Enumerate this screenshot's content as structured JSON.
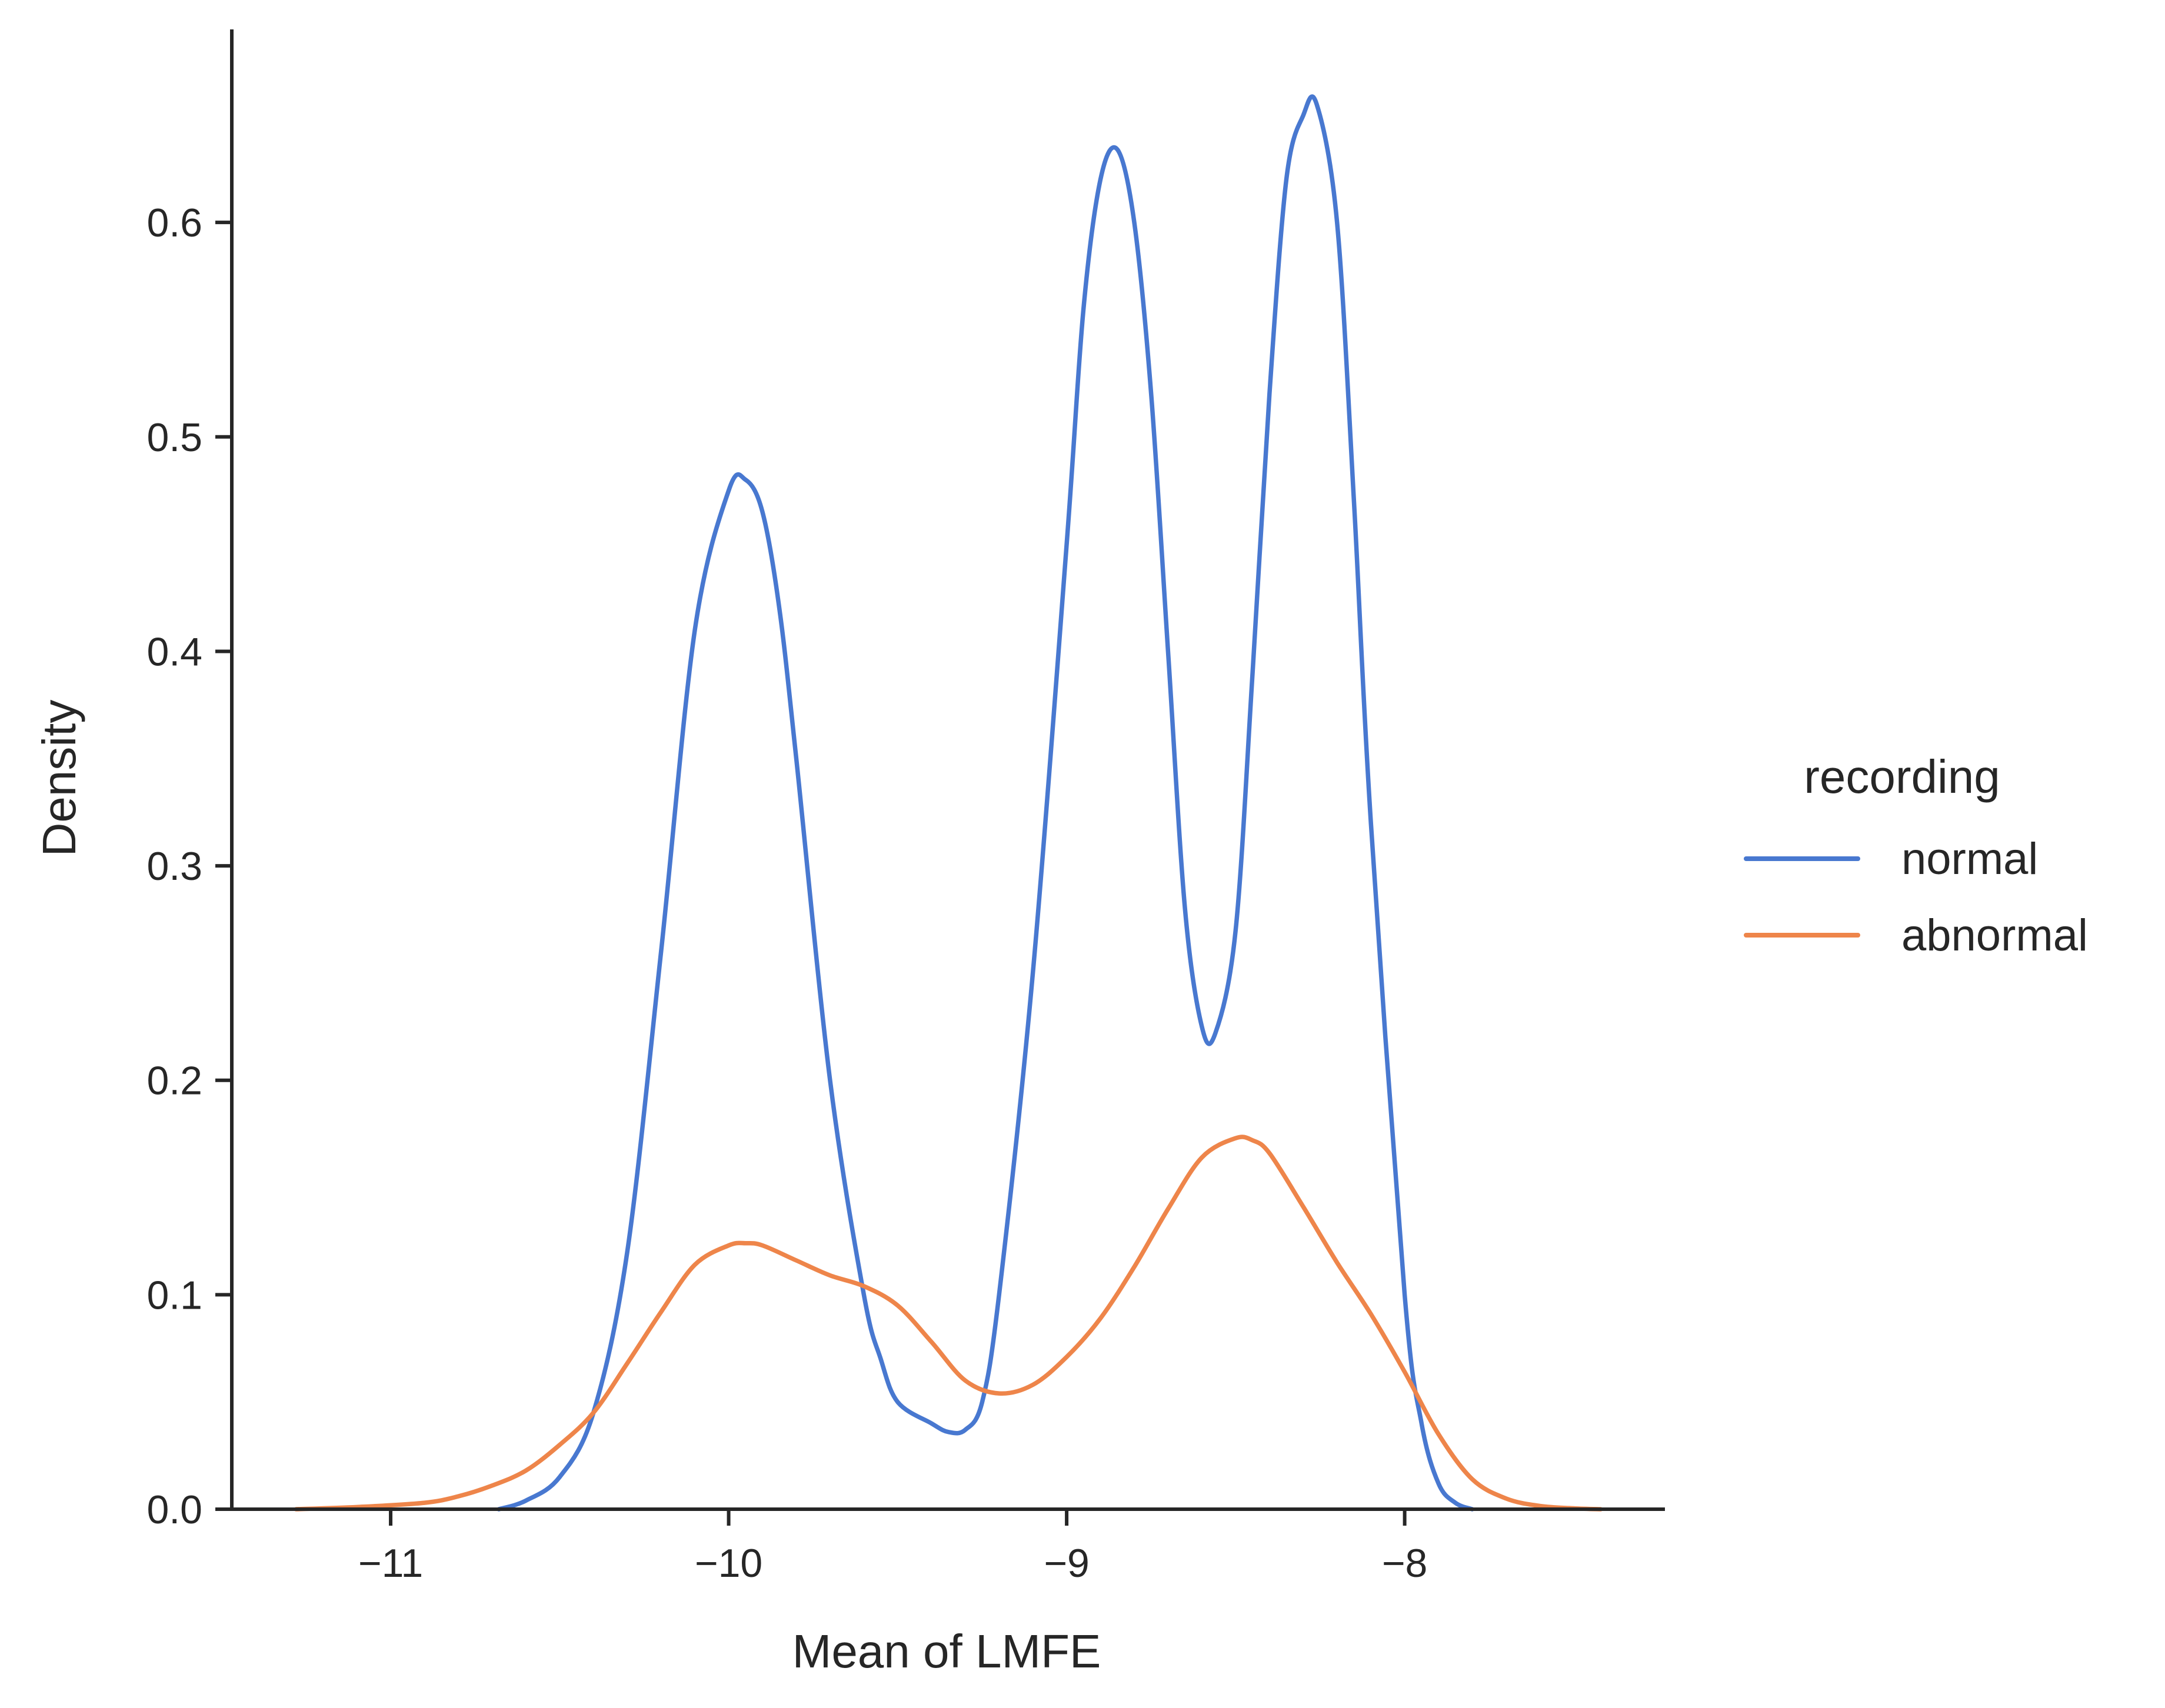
{
  "chart_data": {
    "type": "line",
    "title": "",
    "xlabel": "Mean of LMFE",
    "ylabel": "Density",
    "xlim": [
      -11.47,
      -7.23
    ],
    "ylim": [
      0,
      0.69
    ],
    "xticks": [
      -11,
      -10,
      -9,
      -8
    ],
    "xtick_labels": [
      "−11",
      "−10",
      "−9",
      "−8"
    ],
    "yticks": [
      0.0,
      0.1,
      0.2,
      0.3,
      0.4,
      0.5,
      0.6
    ],
    "ytick_labels": [
      "0.0",
      "0.1",
      "0.2",
      "0.3",
      "0.4",
      "0.5",
      "0.6"
    ],
    "grid": false,
    "legend": {
      "title": "recording",
      "placement": "outside-right"
    },
    "series": [
      {
        "name": "normal",
        "color": "#4878d0",
        "x": [
          -10.68,
          -10.6,
          -10.5,
          -10.4,
          -10.3,
          -10.2,
          -10.1,
          -10.0,
          -9.95,
          -9.9,
          -9.85,
          -9.8,
          -9.7,
          -9.6,
          -9.55,
          -9.5,
          -9.4,
          -9.35,
          -9.3,
          -9.25,
          -9.2,
          -9.1,
          -9.0,
          -8.95,
          -8.9,
          -8.85,
          -8.8,
          -8.75,
          -8.7,
          -8.65,
          -8.6,
          -8.56,
          -8.5,
          -8.45,
          -8.4,
          -8.35,
          -8.3,
          -8.26,
          -8.2,
          -8.15,
          -8.1,
          -8.0,
          -7.95,
          -7.9,
          -7.85,
          -7.8
        ],
        "y": [
          0.0,
          0.004,
          0.015,
          0.045,
          0.12,
          0.26,
          0.41,
          0.475,
          0.48,
          0.465,
          0.42,
          0.35,
          0.2,
          0.1,
          0.07,
          0.05,
          0.04,
          0.036,
          0.037,
          0.05,
          0.1,
          0.25,
          0.45,
          0.56,
          0.62,
          0.634,
          0.6,
          0.52,
          0.4,
          0.28,
          0.225,
          0.222,
          0.27,
          0.39,
          0.52,
          0.62,
          0.65,
          0.655,
          0.6,
          0.47,
          0.32,
          0.1,
          0.04,
          0.012,
          0.003,
          0.0
        ]
      },
      {
        "name": "abnormal",
        "color": "#ee854a",
        "x": [
          -11.28,
          -11.1,
          -10.9,
          -10.8,
          -10.7,
          -10.6,
          -10.5,
          -10.4,
          -10.3,
          -10.2,
          -10.1,
          -10.0,
          -9.95,
          -9.9,
          -9.8,
          -9.7,
          -9.6,
          -9.5,
          -9.4,
          -9.3,
          -9.2,
          -9.1,
          -9.0,
          -8.9,
          -8.8,
          -8.7,
          -8.6,
          -8.5,
          -8.45,
          -8.4,
          -8.3,
          -8.2,
          -8.1,
          -8.0,
          -7.9,
          -7.8,
          -7.7,
          -7.6,
          -7.5,
          -7.42
        ],
        "y": [
          0.0,
          0.001,
          0.003,
          0.006,
          0.011,
          0.018,
          0.03,
          0.045,
          0.068,
          0.092,
          0.114,
          0.123,
          0.124,
          0.123,
          0.116,
          0.109,
          0.104,
          0.095,
          0.078,
          0.06,
          0.054,
          0.058,
          0.071,
          0.089,
          0.113,
          0.14,
          0.164,
          0.173,
          0.172,
          0.166,
          0.141,
          0.115,
          0.091,
          0.064,
          0.035,
          0.014,
          0.005,
          0.0015,
          0.0004,
          0.0
        ]
      }
    ]
  }
}
